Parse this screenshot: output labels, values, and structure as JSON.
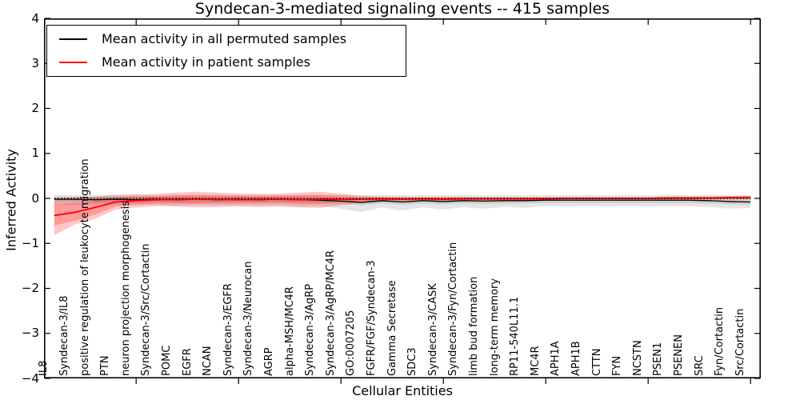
{
  "figure": {
    "title": "Syndecan-3-mediated signaling events -- 415 samples",
    "y_axis_label": "Inferred Activity",
    "x_axis_label": "Cellular Entities"
  },
  "legend": {
    "items": [
      {
        "label": "Mean activity in all permuted samples",
        "color": "#000000"
      },
      {
        "label": "Mean activity in patient samples",
        "color": "#ff0000"
      }
    ]
  },
  "colors": {
    "permuted_line": "#000000",
    "patient_line": "#ff0000",
    "permuted_band": "rgba(0,0,0,0.10)",
    "patient_band": "rgba(255,0,0,0.22)",
    "zero_line": "#000000",
    "frame": "#000000",
    "background": "#ffffff"
  },
  "chart_data": {
    "type": "line",
    "title": "Syndecan-3-mediated signaling events -- 415 samples",
    "xlabel": "Cellular Entities",
    "ylabel": "Inferred Activity",
    "ylim": [
      -4,
      4
    ],
    "grid": false,
    "legend_position": "upper left",
    "zero_reference_line": 0,
    "y_ticks": [
      4,
      3,
      2,
      1,
      0,
      -1,
      -2,
      -3,
      -4
    ],
    "y_tick_labels": [
      "4",
      "3",
      "2",
      "1",
      "0",
      "−1",
      "−2",
      "−3",
      "−4"
    ],
    "x_major_tick_indices": [
      4,
      9,
      14,
      19,
      24,
      29,
      34
    ],
    "categories": [
      "IL8",
      "Syndecan-3/IL8",
      "positive regulation of leukocyte migration",
      "PTN",
      "neuron projection morphogenesis",
      "Syndecan-3/Src/Cortactin",
      "POMC",
      "EGFR",
      "NCAN",
      "Syndecan-3/EGFR",
      "Syndecan-3/Neurocan",
      "AGRP",
      "alpha-MSH/MC4R",
      "Syndecan-3/AgRP",
      "Syndecan-3/AgRP/MC4R",
      "GO:0007205",
      "FGFR/FGF/Syndecan-3",
      "Gamma Secretase",
      "SDC3",
      "Syndecan-3/CASK",
      "Syndecan-3/Fyn/Cortactin",
      "limb bud formation",
      "long-term memory",
      "RP11-540L11.1",
      "MC4R",
      "APH1A",
      "APH1B",
      "CTTN",
      "FYN",
      "NCSTN",
      "PSEN1",
      "PSENEN",
      "SRC",
      "Fyn/Cortactin",
      "Src/Cortactin"
    ],
    "series": [
      {
        "name": "Mean activity in all permuted samples",
        "color": "#000000",
        "values": [
          -0.02,
          -0.02,
          -0.03,
          -0.02,
          -0.03,
          -0.02,
          -0.03,
          -0.02,
          -0.03,
          -0.02,
          -0.03,
          -0.02,
          -0.03,
          -0.04,
          -0.06,
          -0.09,
          -0.05,
          -0.08,
          -0.05,
          -0.07,
          -0.05,
          -0.06,
          -0.05,
          -0.05,
          -0.04,
          -0.04,
          -0.04,
          -0.04,
          -0.04,
          -0.04,
          -0.04,
          -0.04,
          -0.05,
          -0.07,
          -0.08
        ]
      },
      {
        "name": "Mean activity in patient samples",
        "color": "#ff0000",
        "values": [
          -0.38,
          -0.31,
          -0.2,
          -0.08,
          -0.05,
          -0.03,
          -0.02,
          -0.02,
          -0.02,
          -0.03,
          -0.02,
          -0.02,
          -0.03,
          -0.02,
          -0.02,
          -0.02,
          -0.01,
          -0.02,
          -0.01,
          -0.02,
          -0.01,
          -0.01,
          -0.01,
          -0.01,
          -0.01,
          0.0,
          0.0,
          0.0,
          0.0,
          0.0,
          0.01,
          0.01,
          0.01,
          0.02,
          0.02
        ]
      }
    ],
    "bands": [
      {
        "name": "permuted-outer-band",
        "color": "rgba(0,0,0,0.10)",
        "upper": [
          0.08,
          0.07,
          0.08,
          0.07,
          0.08,
          0.07,
          0.08,
          0.07,
          0.08,
          0.07,
          0.08,
          0.07,
          0.08,
          0.07,
          0.08,
          0.07,
          0.08,
          0.07,
          0.08,
          0.07,
          0.08,
          0.07,
          0.08,
          0.07,
          0.08,
          0.07,
          0.08,
          0.07,
          0.08,
          0.07,
          0.08,
          0.07,
          0.08,
          0.07,
          0.08
        ],
        "lower": [
          -0.13,
          -0.15,
          -0.13,
          -0.14,
          -0.15,
          -0.14,
          -0.16,
          -0.14,
          -0.16,
          -0.15,
          -0.16,
          -0.15,
          -0.18,
          -0.17,
          -0.23,
          -0.3,
          -0.2,
          -0.27,
          -0.2,
          -0.25,
          -0.2,
          -0.23,
          -0.19,
          -0.21,
          -0.17,
          -0.18,
          -0.17,
          -0.18,
          -0.17,
          -0.18,
          -0.17,
          -0.18,
          -0.19,
          -0.23,
          -0.21
        ]
      },
      {
        "name": "permuted-inner-band",
        "color": "rgba(0,0,0,0.10)",
        "upper": [
          0.04,
          0.04,
          0.03,
          0.04,
          0.03,
          0.04,
          0.03,
          0.04,
          0.03,
          0.04,
          0.03,
          0.04,
          0.03,
          0.02,
          0.0,
          -0.03,
          0.01,
          -0.02,
          0.01,
          -0.01,
          0.01,
          0.0,
          0.01,
          0.01,
          0.02,
          0.02,
          0.02,
          0.02,
          0.02,
          0.02,
          0.02,
          0.02,
          0.01,
          -0.01,
          -0.02
        ],
        "lower": [
          -0.08,
          -0.08,
          -0.09,
          -0.08,
          -0.09,
          -0.08,
          -0.09,
          -0.08,
          -0.09,
          -0.08,
          -0.09,
          -0.08,
          -0.09,
          -0.1,
          -0.12,
          -0.15,
          -0.11,
          -0.14,
          -0.11,
          -0.13,
          -0.11,
          -0.12,
          -0.11,
          -0.11,
          -0.1,
          -0.1,
          -0.1,
          -0.1,
          -0.1,
          -0.1,
          -0.1,
          -0.1,
          -0.11,
          -0.13,
          -0.14
        ]
      },
      {
        "name": "patient-outer-band",
        "color": "rgba(255,0,0,0.22)",
        "upper": [
          0.0,
          0.02,
          0.04,
          0.08,
          0.09,
          0.1,
          0.13,
          0.15,
          0.13,
          0.11,
          0.1,
          0.11,
          0.13,
          0.15,
          0.1,
          0.06,
          0.04,
          0.04,
          0.03,
          0.04,
          0.03,
          0.03,
          0.03,
          0.03,
          0.03,
          0.03,
          0.03,
          0.03,
          0.03,
          0.03,
          0.04,
          0.04,
          0.04,
          0.05,
          0.06
        ],
        "lower": [
          -0.82,
          -0.58,
          -0.45,
          -0.25,
          -0.2,
          -0.17,
          -0.18,
          -0.2,
          -0.19,
          -0.18,
          -0.19,
          -0.18,
          -0.2,
          -0.21,
          -0.15,
          -0.1,
          -0.08,
          -0.07,
          -0.06,
          -0.07,
          -0.06,
          -0.06,
          -0.05,
          -0.05,
          -0.05,
          -0.04,
          -0.04,
          -0.04,
          -0.04,
          -0.04,
          -0.03,
          -0.03,
          -0.03,
          -0.02,
          -0.02
        ]
      },
      {
        "name": "patient-inner-band",
        "color": "rgba(255,0,0,0.22)",
        "upper": [
          -0.12,
          -0.1,
          -0.05,
          0.02,
          0.04,
          0.05,
          0.07,
          0.08,
          0.07,
          0.06,
          0.05,
          0.06,
          0.07,
          0.08,
          0.05,
          0.03,
          0.02,
          0.02,
          0.02,
          0.02,
          0.02,
          0.02,
          0.02,
          0.02,
          0.02,
          0.02,
          0.02,
          0.02,
          0.02,
          0.02,
          0.02,
          0.02,
          0.03,
          0.03,
          0.04
        ],
        "lower": [
          -0.6,
          -0.5,
          -0.36,
          -0.18,
          -0.13,
          -0.11,
          -0.11,
          -0.12,
          -0.11,
          -0.11,
          -0.11,
          -0.1,
          -0.12,
          -0.12,
          -0.09,
          -0.06,
          -0.04,
          -0.04,
          -0.03,
          -0.04,
          -0.03,
          -0.03,
          -0.03,
          -0.03,
          -0.03,
          -0.02,
          -0.02,
          -0.02,
          -0.02,
          -0.02,
          -0.02,
          -0.02,
          -0.01,
          -0.01,
          -0.01
        ]
      }
    ]
  }
}
